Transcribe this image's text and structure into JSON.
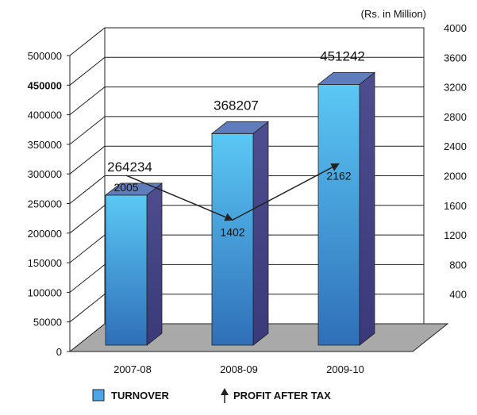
{
  "chart_data": {
    "type": "bar",
    "unit_note": "(Rs. in Million)",
    "categories": [
      "2007-08",
      "2008-09",
      "2009-10"
    ],
    "series": [
      {
        "name": "TURNOVER",
        "type": "bar",
        "axis": "left",
        "values": [
          264234,
          368207,
          451242
        ],
        "color": "#4aa6e8"
      },
      {
        "name": "PROFIT AFTER TAX",
        "type": "line",
        "axis": "right",
        "values": [
          2005,
          1402,
          2162
        ],
        "color": "#222222"
      }
    ],
    "left_axis": {
      "ylim": [
        0,
        500000
      ],
      "ticks": [
        "0",
        "50000",
        "100000",
        "150000",
        "200000",
        "250000",
        "300000",
        "350000",
        "400000",
        "450000",
        "500000"
      ]
    },
    "right_axis": {
      "ylim": [
        0,
        4000
      ],
      "ticks": [
        "400",
        "800",
        "1200",
        "1600",
        "2000",
        "2400",
        "2800",
        "3200",
        "3600",
        "4000"
      ]
    },
    "grid": true,
    "legend_position": "bottom"
  }
}
